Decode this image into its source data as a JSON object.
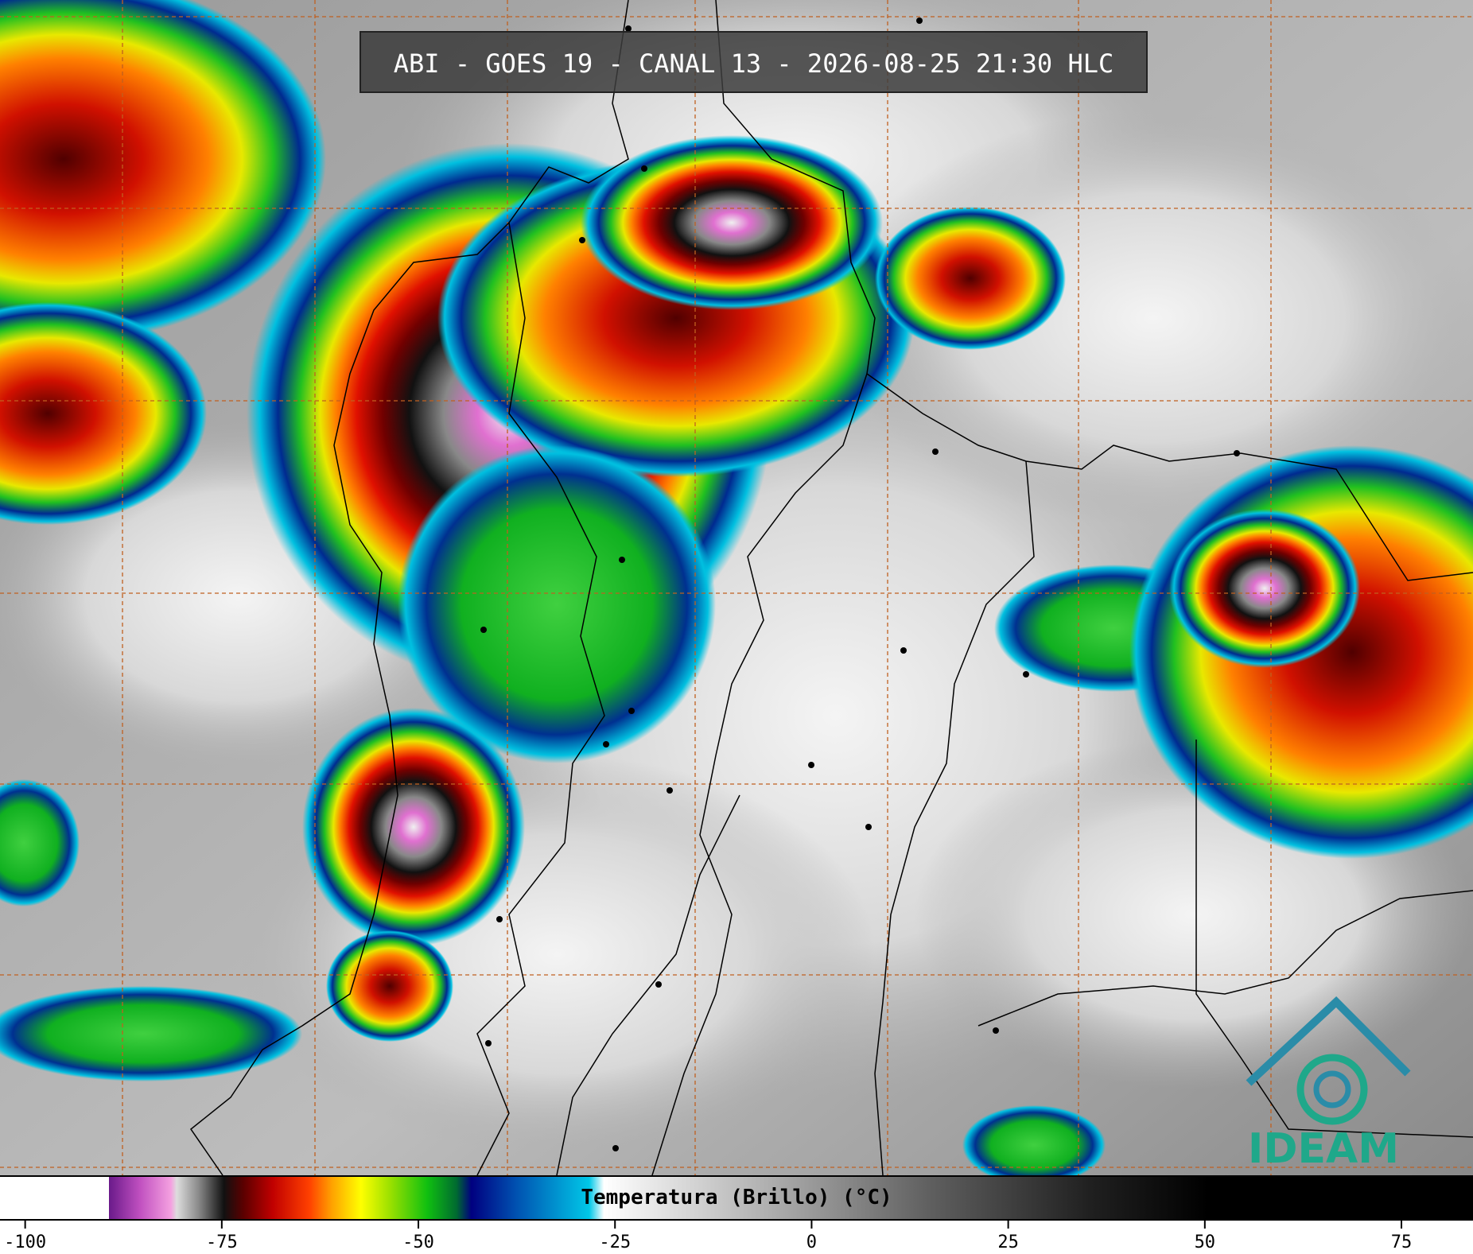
{
  "header": {
    "title": "ABI - GOES 19 - CANAL 13 - 2026-08-25 21:30 HLC"
  },
  "colorbar": {
    "label": "Temperatura (Brillo) (°C)",
    "range": [
      -103.2,
      84.1
    ],
    "ticks": [
      -100,
      -75,
      -50,
      -25,
      0,
      25,
      50,
      75
    ]
  },
  "logo": {
    "text": "IDEAM"
  }
}
